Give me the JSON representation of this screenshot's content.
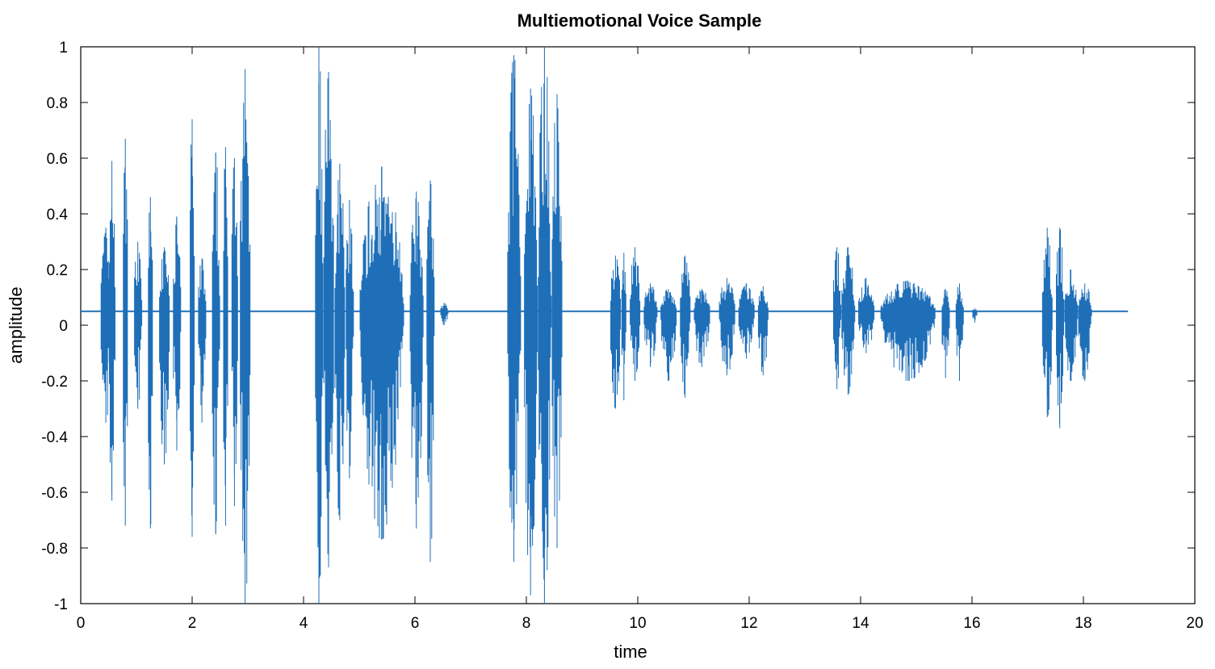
{
  "chart_data": {
    "type": "line",
    "title": "Multiemotional Voice Sample",
    "xlabel": "time",
    "ylabel": "amplitude",
    "xlim": [
      0,
      20
    ],
    "ylim": [
      -1,
      1
    ],
    "x_ticks": [
      "0",
      "2",
      "4",
      "6",
      "8",
      "10",
      "12",
      "14",
      "16",
      "18",
      "20"
    ],
    "y_ticks": [
      "1",
      "0.8",
      "0.6",
      "0.4",
      "0.2",
      "0",
      "-0.2",
      "-0.4",
      "-0.6",
      "-0.8",
      "-1"
    ],
    "series_color": "#1f6fb8",
    "baseline": 0.05,
    "signal_end": 18.8,
    "bursts": [
      {
        "start": 0.35,
        "end": 0.55,
        "max": 0.35,
        "min": -0.35
      },
      {
        "start": 0.5,
        "end": 0.62,
        "max": 0.59,
        "min": -0.63
      },
      {
        "start": 0.75,
        "end": 0.85,
        "max": 0.67,
        "min": -0.72
      },
      {
        "start": 0.95,
        "end": 1.1,
        "max": 0.3,
        "min": -0.3
      },
      {
        "start": 1.2,
        "end": 1.3,
        "max": 0.46,
        "min": -0.73
      },
      {
        "start": 1.4,
        "end": 1.6,
        "max": 0.28,
        "min": -0.5
      },
      {
        "start": 1.65,
        "end": 1.8,
        "max": 0.39,
        "min": -0.45
      },
      {
        "start": 1.95,
        "end": 2.05,
        "max": 0.74,
        "min": -0.76
      },
      {
        "start": 2.1,
        "end": 2.25,
        "max": 0.24,
        "min": -0.35
      },
      {
        "start": 2.35,
        "end": 2.5,
        "max": 0.62,
        "min": -0.75
      },
      {
        "start": 2.55,
        "end": 2.65,
        "max": 0.64,
        "min": -0.72
      },
      {
        "start": 2.7,
        "end": 2.82,
        "max": 0.6,
        "min": -0.65
      },
      {
        "start": 2.85,
        "end": 3.05,
        "max": 0.92,
        "min": -1.0
      },
      {
        "start": 4.2,
        "end": 4.35,
        "max": 1.0,
        "min": -1.0
      },
      {
        "start": 4.35,
        "end": 4.55,
        "max": 0.91,
        "min": -0.87
      },
      {
        "start": 4.55,
        "end": 4.75,
        "max": 0.58,
        "min": -0.7
      },
      {
        "start": 4.75,
        "end": 4.9,
        "max": 0.45,
        "min": -0.55
      },
      {
        "start": 5.0,
        "end": 5.8,
        "max": 0.57,
        "min": -0.77
      },
      {
        "start": 5.9,
        "end": 6.15,
        "max": 0.48,
        "min": -0.73
      },
      {
        "start": 6.2,
        "end": 6.35,
        "max": 0.52,
        "min": -0.85
      },
      {
        "start": 6.45,
        "end": 6.6,
        "max": 0.08,
        "min": 0.0
      },
      {
        "start": 7.65,
        "end": 7.9,
        "max": 0.97,
        "min": -0.85
      },
      {
        "start": 7.95,
        "end": 8.2,
        "max": 0.85,
        "min": -0.97
      },
      {
        "start": 8.2,
        "end": 8.45,
        "max": 1.0,
        "min": -1.0
      },
      {
        "start": 8.45,
        "end": 8.65,
        "max": 0.83,
        "min": -0.8
      },
      {
        "start": 9.5,
        "end": 9.7,
        "max": 0.25,
        "min": -0.3
      },
      {
        "start": 9.7,
        "end": 9.8,
        "max": 0.26,
        "min": -0.27
      },
      {
        "start": 9.85,
        "end": 10.05,
        "max": 0.28,
        "min": -0.2
      },
      {
        "start": 10.1,
        "end": 10.35,
        "max": 0.15,
        "min": -0.15
      },
      {
        "start": 10.4,
        "end": 10.7,
        "max": 0.13,
        "min": -0.2
      },
      {
        "start": 10.75,
        "end": 10.95,
        "max": 0.25,
        "min": -0.26
      },
      {
        "start": 11.0,
        "end": 11.3,
        "max": 0.13,
        "min": -0.15
      },
      {
        "start": 11.45,
        "end": 11.75,
        "max": 0.17,
        "min": -0.18
      },
      {
        "start": 11.8,
        "end": 12.1,
        "max": 0.15,
        "min": -0.12
      },
      {
        "start": 12.15,
        "end": 12.35,
        "max": 0.14,
        "min": -0.18
      },
      {
        "start": 13.5,
        "end": 13.65,
        "max": 0.28,
        "min": -0.23
      },
      {
        "start": 13.65,
        "end": 13.9,
        "max": 0.28,
        "min": -0.25
      },
      {
        "start": 13.95,
        "end": 14.25,
        "max": 0.17,
        "min": -0.1
      },
      {
        "start": 14.35,
        "end": 15.35,
        "max": 0.16,
        "min": -0.2
      },
      {
        "start": 15.45,
        "end": 15.6,
        "max": 0.13,
        "min": -0.19
      },
      {
        "start": 15.7,
        "end": 15.85,
        "max": 0.15,
        "min": -0.2
      },
      {
        "start": 16.0,
        "end": 16.1,
        "max": 0.06,
        "min": 0.01
      },
      {
        "start": 17.25,
        "end": 17.45,
        "max": 0.35,
        "min": -0.33
      },
      {
        "start": 17.5,
        "end": 17.65,
        "max": 0.35,
        "min": -0.37
      },
      {
        "start": 17.65,
        "end": 17.9,
        "max": 0.2,
        "min": -0.2
      },
      {
        "start": 17.9,
        "end": 18.15,
        "max": 0.15,
        "min": -0.2
      }
    ]
  }
}
